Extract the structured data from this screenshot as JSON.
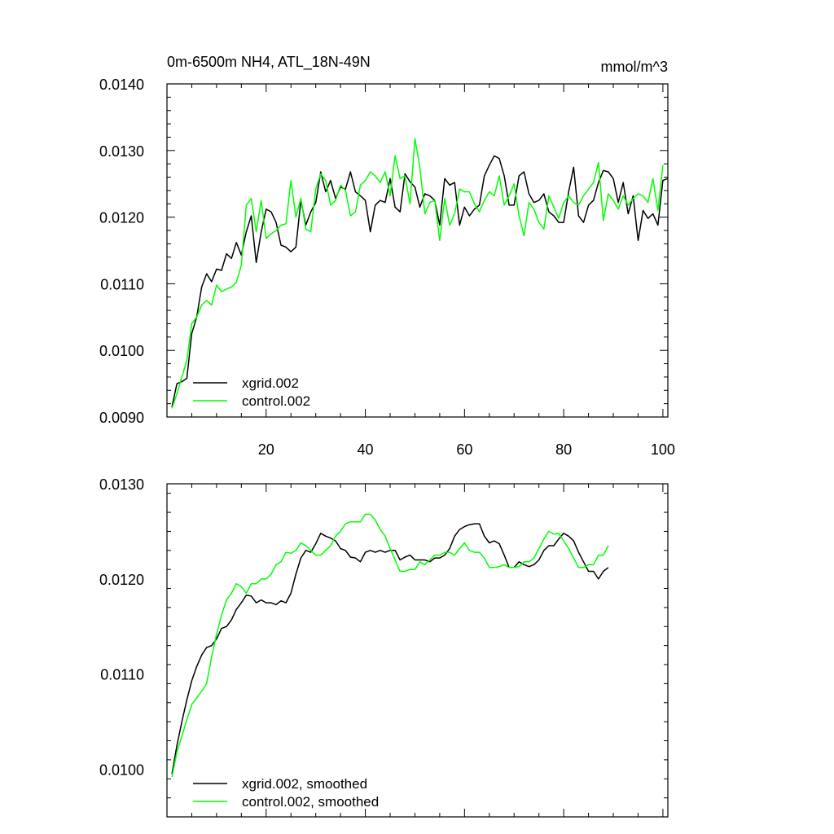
{
  "chart_data": [
    {
      "type": "line",
      "title_left": "0m-6500m NH4, ATL_18N-49N",
      "title_right": "mmol/m^3",
      "xlim": [
        0,
        101
      ],
      "ylim": [
        0.009,
        0.014
      ],
      "xticks": [
        20,
        40,
        60,
        80,
        100
      ],
      "xticklabels": [
        "20",
        "40",
        "60",
        "80",
        "100"
      ],
      "yticks": [
        0.009,
        0.01,
        0.011,
        0.012,
        0.013,
        0.014
      ],
      "yticklabels": [
        "0.0090",
        "0.0100",
        "0.0110",
        "0.0120",
        "0.0130",
        "0.0140"
      ],
      "legend_position": "lower-left",
      "series": [
        {
          "name": "xgrid.002",
          "color": "#000000",
          "values": [
            0.00915,
            0.0095,
            0.00953,
            0.00958,
            0.01025,
            0.0105,
            0.01095,
            0.01115,
            0.01103,
            0.01122,
            0.0112,
            0.01145,
            0.01138,
            0.01162,
            0.01143,
            0.01178,
            0.01202,
            0.01132,
            0.01178,
            0.01212,
            0.01208,
            0.01192,
            0.01158,
            0.01155,
            0.01148,
            0.01155,
            0.01225,
            0.01188,
            0.01208,
            0.01222,
            0.01268,
            0.01238,
            0.01255,
            0.01228,
            0.01245,
            0.01242,
            0.01268,
            0.01238,
            0.01232,
            0.01225,
            0.01178,
            0.01218,
            0.01225,
            0.01222,
            0.01258,
            0.01215,
            0.01208,
            0.01265,
            0.01253,
            0.01245,
            0.01215,
            0.01235,
            0.01232,
            0.01225,
            0.01188,
            0.01258,
            0.01248,
            0.01252,
            0.01188,
            0.01215,
            0.01202,
            0.01212,
            0.01218,
            0.01262,
            0.01278,
            0.01292,
            0.01288,
            0.01262,
            0.01218,
            0.01218,
            0.01262,
            0.01268,
            0.01235,
            0.01222,
            0.01225,
            0.01235,
            0.01208,
            0.01202,
            0.01192,
            0.01192,
            0.01238,
            0.01275,
            0.01202,
            0.01192,
            0.01218,
            0.01225,
            0.01252,
            0.0127,
            0.01268,
            0.01258,
            0.01222,
            0.01252,
            0.01205,
            0.01232,
            0.01165,
            0.0121,
            0.01198,
            0.01205,
            0.01188,
            0.01255,
            0.01258
          ]
        },
        {
          "name": "control.002",
          "color": "#00ff00",
          "values": [
            0.00913,
            0.00935,
            0.0096,
            0.00985,
            0.0104,
            0.0105,
            0.01068,
            0.01075,
            0.01068,
            0.01098,
            0.01088,
            0.01092,
            0.01095,
            0.01102,
            0.01128,
            0.01218,
            0.01228,
            0.01178,
            0.01225,
            0.01168,
            0.01175,
            0.0118,
            0.01188,
            0.0119,
            0.01255,
            0.012,
            0.01228,
            0.01182,
            0.01178,
            0.01242,
            0.01265,
            0.01255,
            0.01218,
            0.01225,
            0.01248,
            0.0124,
            0.01202,
            0.01208,
            0.01248,
            0.01255,
            0.01268,
            0.01262,
            0.01252,
            0.01268,
            0.01232,
            0.01292,
            0.01258,
            0.01262,
            0.0122,
            0.01318,
            0.01275,
            0.01205,
            0.01222,
            0.01225,
            0.01165,
            0.01228,
            0.01188,
            0.01205,
            0.01242,
            0.01238,
            0.01238,
            0.0122,
            0.01208,
            0.01225,
            0.01238,
            0.01232,
            0.01262,
            0.01218,
            0.01232,
            0.0125,
            0.01202,
            0.01172,
            0.01222,
            0.01212,
            0.01192,
            0.01182,
            0.01232,
            0.01215,
            0.01198,
            0.01222,
            0.01232,
            0.01222,
            0.01218,
            0.01232,
            0.01242,
            0.01252,
            0.01282,
            0.01195,
            0.01235,
            0.01225,
            0.01212,
            0.01232,
            0.01218,
            0.01228,
            0.01235,
            0.01232,
            0.01222,
            0.01258,
            0.0121,
            0.01278
          ]
        }
      ]
    },
    {
      "type": "line",
      "xlim": [
        0,
        101
      ],
      "ylim": [
        0.0095,
        0.013
      ],
      "xticks": [
        20,
        40,
        60,
        80,
        100
      ],
      "yticks": [
        0.01,
        0.011,
        0.012,
        0.013
      ],
      "yticklabels": [
        "0.0100",
        "0.0110",
        "0.0120",
        "0.0130"
      ],
      "legend_position": "lower-left",
      "series": [
        {
          "name": "xgrid.002, smoothed",
          "color": "#000000",
          "values": [
            0.00995,
            0.01025,
            0.0105,
            0.01073,
            0.01093,
            0.01108,
            0.0112,
            0.01128,
            0.0113,
            0.01137,
            0.01148,
            0.0115,
            0.01157,
            0.01168,
            0.01175,
            0.01183,
            0.01182,
            0.01175,
            0.01178,
            0.01175,
            0.01175,
            0.01173,
            0.01177,
            0.01175,
            0.01185,
            0.01205,
            0.01222,
            0.0123,
            0.01228,
            0.01237,
            0.01248,
            0.01245,
            0.01243,
            0.0124,
            0.01232,
            0.0123,
            0.01223,
            0.01222,
            0.01218,
            0.01228,
            0.0123,
            0.01228,
            0.0123,
            0.01228,
            0.0123,
            0.0123,
            0.0122,
            0.01223,
            0.01225,
            0.0122,
            0.0122,
            0.0122,
            0.01218,
            0.01222,
            0.01222,
            0.01225,
            0.01232,
            0.01245,
            0.01252,
            0.01255,
            0.01257,
            0.01258,
            0.01258,
            0.01245,
            0.01238,
            0.0124,
            0.01237,
            0.01225,
            0.01212,
            0.01212,
            0.01218,
            0.01215,
            0.01213,
            0.01215,
            0.0122,
            0.0123,
            0.01235,
            0.01235,
            0.01242,
            0.01248,
            0.01245,
            0.0124,
            0.01228,
            0.01218,
            0.01208,
            0.01208,
            0.012,
            0.01208,
            0.01212
          ]
        },
        {
          "name": "control.002, smoothed",
          "color": "#00ff00",
          "values": [
            0.00992,
            0.01018,
            0.01035,
            0.01052,
            0.01068,
            0.01075,
            0.01082,
            0.0109,
            0.01118,
            0.01142,
            0.01162,
            0.01178,
            0.01185,
            0.01195,
            0.01192,
            0.01185,
            0.01195,
            0.01195,
            0.012,
            0.012,
            0.01205,
            0.01215,
            0.01218,
            0.01228,
            0.01227,
            0.0123,
            0.01238,
            0.01235,
            0.0123,
            0.01225,
            0.01225,
            0.0123,
            0.01235,
            0.01245,
            0.0125,
            0.01258,
            0.0126,
            0.0126,
            0.0126,
            0.01268,
            0.01268,
            0.01262,
            0.01252,
            0.01245,
            0.01232,
            0.0122,
            0.01208,
            0.01208,
            0.0121,
            0.0121,
            0.01218,
            0.01215,
            0.0122,
            0.01225,
            0.01225,
            0.01228,
            0.01228,
            0.01225,
            0.01232,
            0.01238,
            0.0123,
            0.01228,
            0.01228,
            0.01222,
            0.01212,
            0.01212,
            0.01213,
            0.01215,
            0.01212,
            0.01212,
            0.01213,
            0.01218,
            0.01218,
            0.01222,
            0.01232,
            0.01242,
            0.0125,
            0.01247,
            0.01248,
            0.0124,
            0.01232,
            0.01222,
            0.01212,
            0.01212,
            0.01215,
            0.01215,
            0.01225,
            0.01225,
            0.01235
          ]
        }
      ]
    }
  ]
}
